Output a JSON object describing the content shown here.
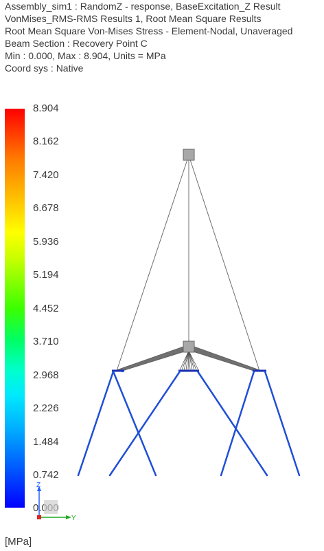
{
  "header": {
    "line1": "Assembly_sim1 : RandomZ - response, BaseExcitation_Z Result",
    "line2": "VonMises_RMS-RMS Results 1, Root Mean Square Results",
    "line3": "Root Mean Square Von-Mises Stress - Element-Nodal, Unaveraged",
    "line4": "Beam Section : Recovery Point C",
    "line5": "Min : 0.000, Max : 8.904, Units = MPa",
    "line6": "Coord sys : Native"
  },
  "legend": {
    "labels": [
      "8.904",
      "8.162",
      "7.420",
      "6.678",
      "5.936",
      "5.194",
      "4.452",
      "3.710",
      "2.968",
      "2.226",
      "1.484",
      "0.742",
      "0.000"
    ],
    "colors": {
      "max": "#ff0000",
      "high": "#ff7a00",
      "mid_high": "#ffff00",
      "mid": "#3cff00",
      "mid_low": "#00ffd0",
      "low": "#00b0ff",
      "min": "#0000ff"
    },
    "unit": "[MPa]"
  },
  "triad": {
    "z_label": "Z",
    "y_label": "Y"
  },
  "model": {
    "leg_color": "#1f4fd6",
    "cable_color": "#777777",
    "node_color": "#a8a8a8"
  }
}
